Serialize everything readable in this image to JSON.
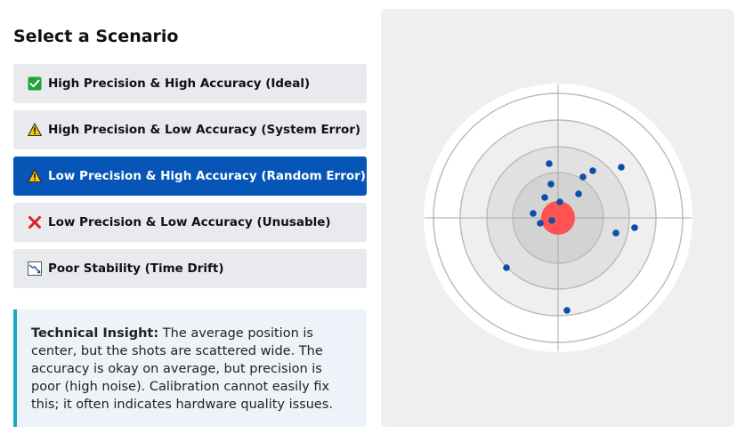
{
  "left": {
    "title": "Select a Scenario",
    "options": [
      {
        "label": "High Precision & High Accuracy (Ideal)",
        "icon": "check-box-icon",
        "active": false
      },
      {
        "label": "High Precision & Low Accuracy (System Error)",
        "icon": "warning-icon",
        "active": false
      },
      {
        "label": "Low Precision & High Accuracy (Random Error)",
        "icon": "warning-icon",
        "active": true
      },
      {
        "label": "Low Precision & Low Accuracy (Unusable)",
        "icon": "cross-icon",
        "active": false
      },
      {
        "label": "Poor Stability (Time Drift)",
        "icon": "trend-chart-icon",
        "active": false
      }
    ],
    "insight": {
      "label": "Technical Insight:",
      "text": " The average position is center, but the shots are scattered wide. The accuracy is okay on average, but precision is poor (high noise). Calibration cannot easily fix this; it often indicates hardware quality issues."
    }
  },
  "target": {
    "shot_color": "#0b4fa8",
    "bullseye_color": "#ff5252",
    "shot_count": 17
  },
  "colors": {
    "active_option": "#0756b7",
    "option_bg": "#e8eaed",
    "insight_border": "#19a7bf",
    "insight_bg": "#eef3f9"
  }
}
